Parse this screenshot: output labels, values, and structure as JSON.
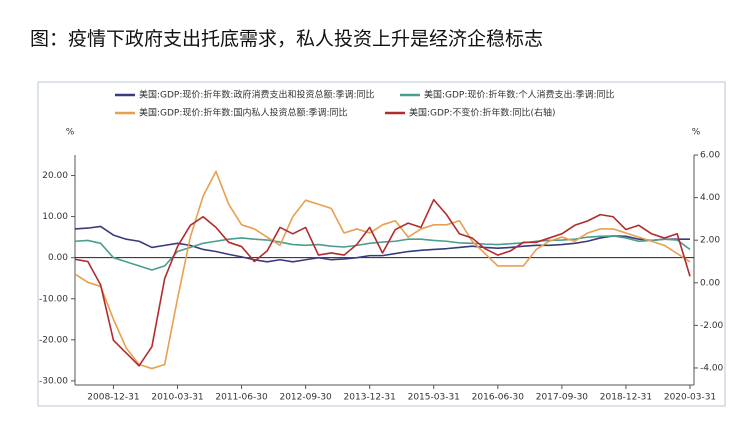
{
  "chart_data": {
    "type": "line",
    "title": "图：疫情下政府支出托底需求，私人投资上升是经济企稳标志",
    "y_unit": "%",
    "y2_unit": "%",
    "categories": [
      null,
      null,
      null,
      "2008-12-31",
      null,
      null,
      null,
      null,
      "2010-03-31",
      null,
      null,
      null,
      null,
      "2011-06-30",
      null,
      null,
      null,
      null,
      "2012-09-30",
      null,
      null,
      null,
      null,
      "2013-12-31",
      null,
      null,
      null,
      null,
      "2015-03-31",
      null,
      null,
      null,
      null,
      "2016-06-30",
      null,
      null,
      null,
      null,
      "2017-09-30",
      null,
      null,
      null,
      null,
      "2018-12-31",
      null,
      null,
      null,
      null,
      "2020-03-31"
    ],
    "ylim": [
      -31,
      25
    ],
    "yticks": [
      {
        "value": -30,
        "label": "-30.00"
      },
      {
        "value": -20,
        "label": "-20.00"
      },
      {
        "value": -10,
        "label": "-10.00"
      },
      {
        "value": 0,
        "label": "0.00"
      },
      {
        "value": 10,
        "label": "10.00"
      },
      {
        "value": 20,
        "label": "20.00"
      }
    ],
    "y2lim": [
      -4.8,
      6
    ],
    "y2ticks": [
      {
        "value": -4,
        "label": "-4.00"
      },
      {
        "value": -2,
        "label": "-2.00"
      },
      {
        "value": 0,
        "label": "0.00"
      },
      {
        "value": 2,
        "label": "2.00"
      },
      {
        "value": 4,
        "label": "4.00"
      },
      {
        "value": 6,
        "label": "6.00"
      }
    ],
    "series": [
      {
        "name": "美国:GDP:现价:折年数:政府消费支出和投资总额:季调:同比",
        "color": "#3a3a80",
        "values": [
          7,
          7.2,
          7.6,
          5.5,
          4.5,
          4,
          2.5,
          3,
          3.5,
          3,
          2,
          1.5,
          0.8,
          0.2,
          -0.5,
          -1,
          -0.5,
          -1,
          -0.5,
          0,
          -0.5,
          -0.3,
          0,
          0.5,
          0.5,
          1,
          1.5,
          1.8,
          2,
          2.2,
          2.5,
          2.8,
          2.5,
          2.3,
          2.5,
          2.8,
          3,
          3,
          3.2,
          3.5,
          4,
          4.8,
          5.3,
          5.2,
          4.5,
          4.2,
          4.5,
          4.5,
          4.5
        ]
      },
      {
        "name": "美国:GDP:现价:折年数:个人消费支出:季调:同比",
        "color": "#4a9e8e",
        "values": [
          4,
          4.2,
          3.5,
          0,
          -1,
          -2,
          -3,
          -2,
          1.5,
          2.5,
          3.5,
          4,
          4.5,
          4.8,
          4.5,
          4.3,
          3.8,
          3.2,
          3,
          3.2,
          2.8,
          2.6,
          3,
          3.5,
          3.8,
          4,
          4.5,
          4.5,
          4.2,
          4,
          3.6,
          3.5,
          3.3,
          3.2,
          3.4,
          3.6,
          4,
          4.2,
          4.3,
          4.5,
          5,
          5.2,
          5.3,
          4.8,
          4,
          4.2,
          4.5,
          4.3,
          2
        ]
      },
      {
        "name": "美国:GDP:现价:折年数:国内私人投资总额:季调:同比",
        "color": "#e8a050",
        "values": [
          -4,
          -6,
          -7,
          -15,
          -22,
          -26,
          -27,
          -26,
          -10,
          5,
          15,
          21,
          13,
          8,
          7,
          5,
          3,
          10,
          14,
          13,
          12,
          6,
          7,
          6,
          8,
          9,
          5,
          7,
          8,
          8,
          9,
          4,
          1,
          -2,
          -2,
          -2,
          2,
          4,
          5,
          4,
          6,
          7,
          7,
          6,
          5,
          4,
          3,
          1,
          -1
        ]
      },
      {
        "name": "美国:GDP:不变价:折年数:同比(右轴)",
        "color": "#b22c2c",
        "axis": "y2",
        "values": [
          1.1,
          1.0,
          -0.1,
          -2.7,
          -3.3,
          -3.9,
          -3.0,
          0.2,
          1.7,
          2.7,
          3.1,
          2.6,
          1.9,
          1.7,
          1.0,
          1.5,
          2.6,
          2.3,
          2.6,
          1.3,
          1.4,
          1.3,
          1.8,
          2.6,
          1.4,
          2.5,
          2.8,
          2.6,
          3.9,
          3.2,
          2.3,
          2.1,
          1.6,
          1.3,
          1.5,
          1.9,
          1.9,
          2.1,
          2.3,
          2.7,
          2.9,
          3.2,
          3.1,
          2.5,
          2.7,
          2.3,
          2.1,
          2.3,
          0.3
        ]
      }
    ]
  }
}
